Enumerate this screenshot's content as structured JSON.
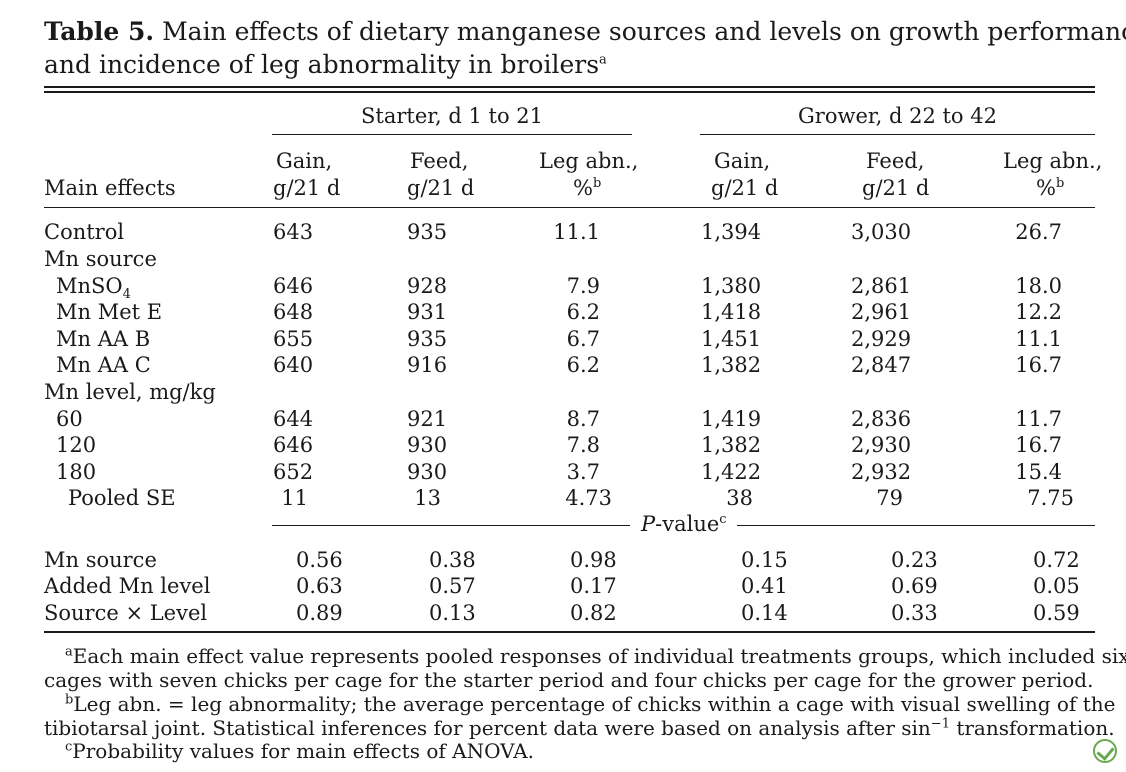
{
  "title": {
    "label": "Table 5.",
    "line1": "Main effects of dietary manganese sources and levels on growth performance",
    "line2": "and incidence of leg abnormality in broilers",
    "sup": "a"
  },
  "groups": {
    "starter": "Starter, d 1 to 21",
    "grower": "Grower, d 22 to 42"
  },
  "columns": {
    "main_effects": "Main effects",
    "gain_1": "Gain,",
    "gain_2": "g/21 d",
    "feed_1": "Feed,",
    "feed_2": "g/21 d",
    "leg_1": "Leg abn.,",
    "leg_2": "%",
    "leg_sup": "b"
  },
  "rows": [
    {
      "label": "Control",
      "v": [
        "643",
        "935",
        "11.1",
        "1,394",
        "3,030",
        "26.7"
      ]
    },
    {
      "label": "Mn source",
      "v": []
    },
    {
      "label": "MnSO",
      "sub": "4",
      "v": [
        "646",
        "928",
        "7.9",
        "1,380",
        "2,861",
        "18.0"
      ]
    },
    {
      "label": "Mn Met E",
      "v": [
        "648",
        "931",
        "6.2",
        "1,418",
        "2,961",
        "12.2"
      ]
    },
    {
      "label": "Mn AA B",
      "v": [
        "655",
        "935",
        "6.7",
        "1,451",
        "2,929",
        "11.1"
      ]
    },
    {
      "label": "Mn AA C",
      "v": [
        "640",
        "916",
        "6.2",
        "1,382",
        "2,847",
        "16.7"
      ]
    },
    {
      "label": "Mn level, mg/kg",
      "v": []
    },
    {
      "label": "60",
      "v": [
        "644",
        "921",
        "8.7",
        "1,419",
        "2,836",
        "11.7"
      ]
    },
    {
      "label": "120",
      "v": [
        "646",
        "930",
        "7.8",
        "1,382",
        "2,930",
        "16.7"
      ]
    },
    {
      "label": "180",
      "v": [
        "652",
        "930",
        "3.7",
        "1,422",
        "2,932",
        "15.4"
      ]
    },
    {
      "label": "Pooled SE",
      "v": [
        "11",
        "13",
        "4.73",
        "38",
        "79",
        "7.75"
      ]
    }
  ],
  "pvalue_header": {
    "label": "P",
    "rest": "-value",
    "sup": "c"
  },
  "prows": [
    {
      "label": "Mn source",
      "v": [
        "0.56",
        "0.38",
        "0.98",
        "0.15",
        "0.23",
        "0.72"
      ]
    },
    {
      "label": "Added Mn level",
      "v": [
        "0.63",
        "0.57",
        "0.17",
        "0.41",
        "0.69",
        "0.05"
      ]
    },
    {
      "label": "Source × Level",
      "v": [
        "0.89",
        "0.13",
        "0.82",
        "0.14",
        "0.33",
        "0.59"
      ]
    }
  ],
  "footnotes": {
    "a_mark": "a",
    "a_line1": "Each main effect value represents pooled responses of individual treatments groups, which included six",
    "a_line2": "cages with seven chicks per cage for the starter period and four chicks per cage for the grower period.",
    "b_mark": "b",
    "b_line1": "Leg abn. = leg abnormality; the average percentage of chicks within a cage with visual swelling of the",
    "b_line2a": "tibiotarsal joint. Statistical inferences for percent data were based on analysis after sin",
    "b_line2sup": "−1",
    "b_line2b": " transformation.",
    "c_mark": "c",
    "c_line": "Probability values for main effects of ANOVA."
  }
}
